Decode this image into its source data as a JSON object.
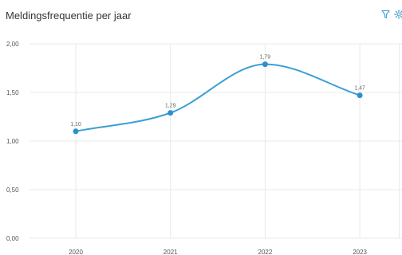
{
  "toolbar": {
    "filter_icon": "filter-icon",
    "settings_icon": "gear-icon"
  },
  "colors": {
    "accent": "#3a9fd6",
    "point": "#2e8fd0",
    "grid": "#e9e9e9",
    "text": "#333333",
    "tick": "#555555",
    "label": "#666666"
  },
  "chart_data": {
    "type": "line",
    "title": "Meldingsfrequentie per jaar",
    "xlabel": "",
    "ylabel": "",
    "categories": [
      "2020",
      "2021",
      "2022",
      "2023"
    ],
    "series": [
      {
        "values": [
          1.1,
          1.29,
          1.79,
          1.47
        ],
        "value_labels": [
          "1,10",
          "1,29",
          "1,79",
          "1,47"
        ]
      }
    ],
    "ylim": [
      0,
      2
    ],
    "yticks": [
      0,
      0.5,
      1.0,
      1.5,
      2.0
    ],
    "ytick_labels": [
      "0,00",
      "0,50",
      "1,00",
      "1,50",
      "2,00"
    ],
    "smooth": true,
    "grid": true,
    "legend": "none"
  }
}
